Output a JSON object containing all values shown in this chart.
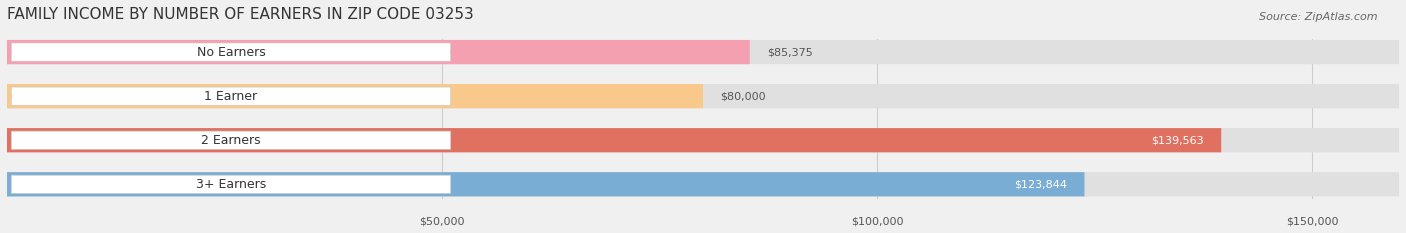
{
  "title": "FAMILY INCOME BY NUMBER OF EARNERS IN ZIP CODE 03253",
  "source": "Source: ZipAtlas.com",
  "categories": [
    "No Earners",
    "1 Earner",
    "2 Earners",
    "3+ Earners"
  ],
  "values": [
    85375,
    80000,
    139563,
    123844
  ],
  "labels": [
    "$85,375",
    "$80,000",
    "$139,563",
    "$123,844"
  ],
  "bar_colors": [
    "#f4a0b0",
    "#f8c98a",
    "#e07060",
    "#7aadd4"
  ],
  "bar_edge_colors": [
    "#e8809a",
    "#e8b060",
    "#c85040",
    "#5a8dba"
  ],
  "label_colors": [
    "#555555",
    "#555555",
    "#ffffff",
    "#ffffff"
  ],
  "background_color": "#f0f0f0",
  "bar_bg_color": "#e8e8e8",
  "xlim_min": 0,
  "xlim_max": 160000,
  "xtick_values": [
    50000,
    100000,
    150000
  ],
  "xtick_labels": [
    "$50,000",
    "$100,000",
    "$150,000"
  ],
  "title_fontsize": 11,
  "source_fontsize": 8,
  "bar_label_fontsize": 8,
  "category_fontsize": 9,
  "tick_fontsize": 8
}
